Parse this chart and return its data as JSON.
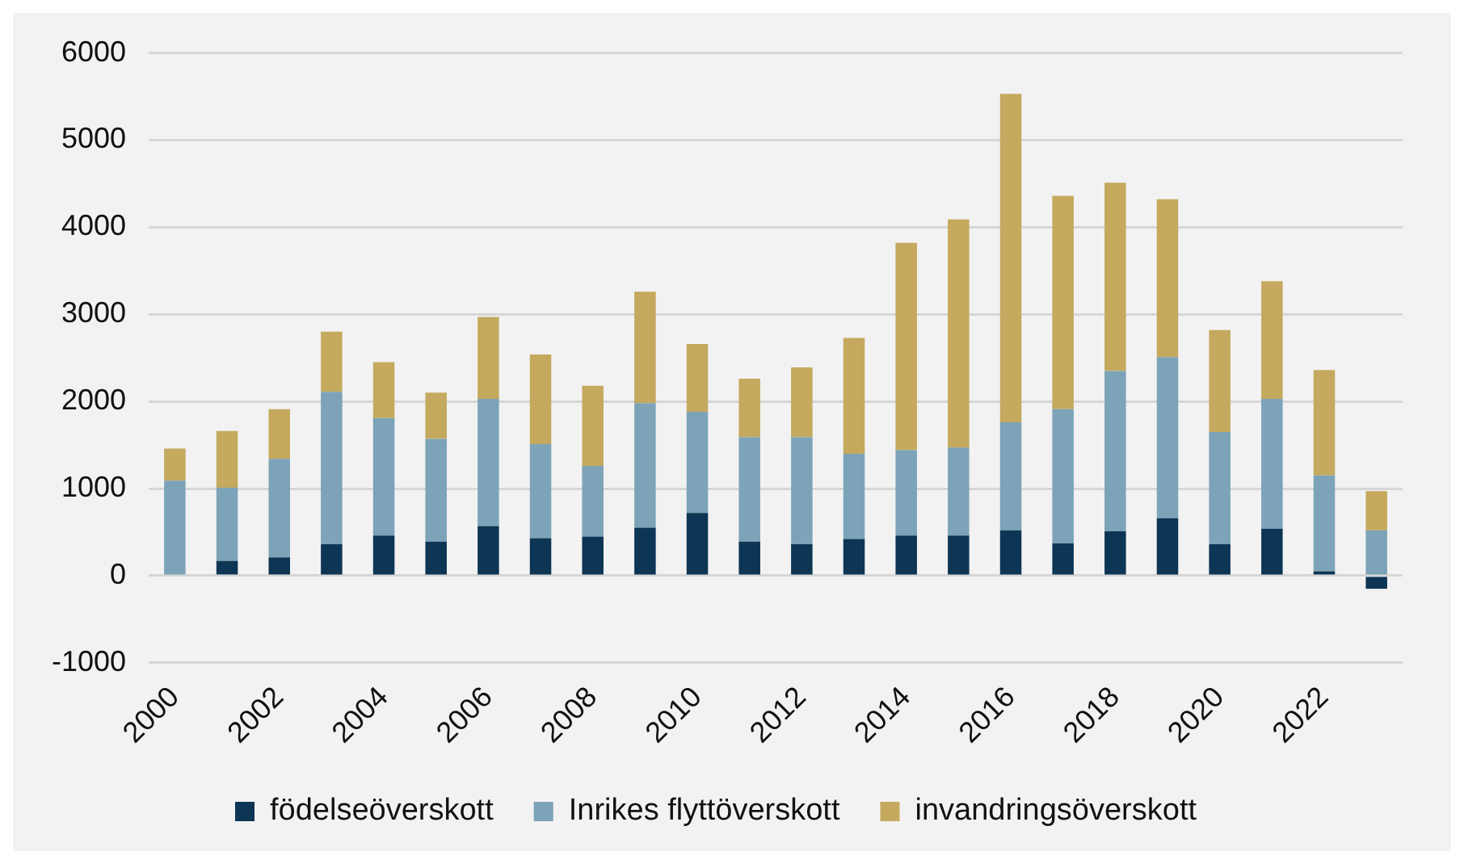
{
  "chart_data": {
    "type": "bar",
    "stacked": true,
    "categories": [
      "2000",
      null,
      "2002",
      null,
      "2004",
      null,
      "2006",
      null,
      "2008",
      null,
      "2010",
      null,
      "2012",
      null,
      "2014",
      null,
      "2016",
      null,
      "2018",
      null,
      "2020",
      null,
      "2022",
      null
    ],
    "series": [
      {
        "name": "födelseöverskott",
        "color": "#0d3554",
        "values": [
          0,
          170,
          210,
          360,
          460,
          390,
          570,
          430,
          450,
          550,
          720,
          390,
          360,
          420,
          460,
          460,
          520,
          370,
          510,
          660,
          360,
          540,
          50,
          -150
        ]
      },
      {
        "name": "Inrikes flyttöverskott",
        "color": "#7ca3b8",
        "values": [
          1090,
          840,
          1130,
          1750,
          1350,
          1180,
          1460,
          1080,
          810,
          1430,
          1160,
          1200,
          1230,
          980,
          980,
          1010,
          1240,
          1540,
          1840,
          1850,
          1290,
          1490,
          1100,
          520
        ]
      },
      {
        "name": "invandringsöverskott",
        "color": "#c4a95e",
        "values": [
          370,
          650,
          570,
          690,
          640,
          530,
          940,
          1030,
          920,
          1280,
          780,
          670,
          800,
          1330,
          2380,
          2620,
          3770,
          2450,
          2160,
          1810,
          1170,
          1350,
          1210,
          450
        ]
      }
    ],
    "ylim": [
      -1000,
      6000
    ],
    "yticks": [
      -1000,
      0,
      1000,
      2000,
      3000,
      4000,
      5000,
      6000
    ],
    "grid": "y",
    "legend": "bottom"
  }
}
